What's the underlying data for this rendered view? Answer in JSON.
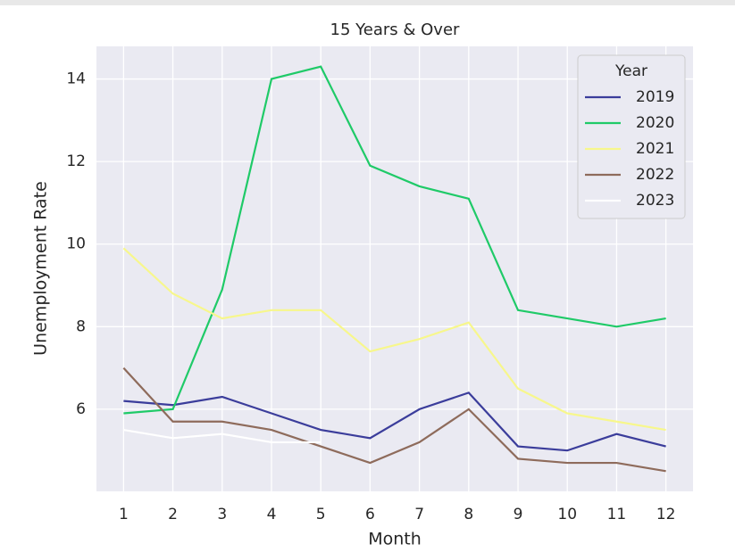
{
  "chart_data": {
    "type": "line",
    "title": "15 Years & Over",
    "x_label": "Month",
    "y_label": "Unemployment Rate",
    "x": [
      1,
      2,
      3,
      4,
      5,
      6,
      7,
      8,
      9,
      10,
      11,
      12
    ],
    "xlim": [
      0.45,
      12.55
    ],
    "xticks": [
      1,
      2,
      3,
      4,
      5,
      6,
      7,
      8,
      9,
      10,
      11,
      12
    ],
    "ylim": [
      4.01,
      14.79
    ],
    "yticks": [
      6,
      8,
      10,
      12,
      14
    ],
    "grid": true,
    "legend_title": "Year",
    "legend_position": "upper right",
    "series": [
      {
        "name": "2019",
        "color": "#3b3d9b",
        "values": [
          6.2,
          6.1,
          6.3,
          5.9,
          5.5,
          5.3,
          6.0,
          6.4,
          5.1,
          5.0,
          5.4,
          5.1
        ]
      },
      {
        "name": "2020",
        "color": "#1fca68",
        "values": [
          5.9,
          6.0,
          8.9,
          14.0,
          14.3,
          11.9,
          11.4,
          11.1,
          8.4,
          8.2,
          8.0,
          8.2
        ]
      },
      {
        "name": "2021",
        "color": "#f7f78c",
        "values": [
          9.9,
          8.8,
          8.2,
          8.4,
          8.4,
          7.4,
          7.7,
          8.1,
          6.5,
          5.9,
          5.7,
          5.5
        ]
      },
      {
        "name": "2022",
        "color": "#8e6b5b",
        "values": [
          7.0,
          5.7,
          5.7,
          5.5,
          5.1,
          4.7,
          5.2,
          6.0,
          4.8,
          4.7,
          4.7,
          4.5
        ]
      },
      {
        "name": "2023",
        "color": "#ffffff",
        "values": [
          5.5,
          5.3,
          5.4,
          5.2,
          5.2,
          null,
          null,
          null,
          null,
          null,
          null,
          null
        ]
      }
    ]
  }
}
